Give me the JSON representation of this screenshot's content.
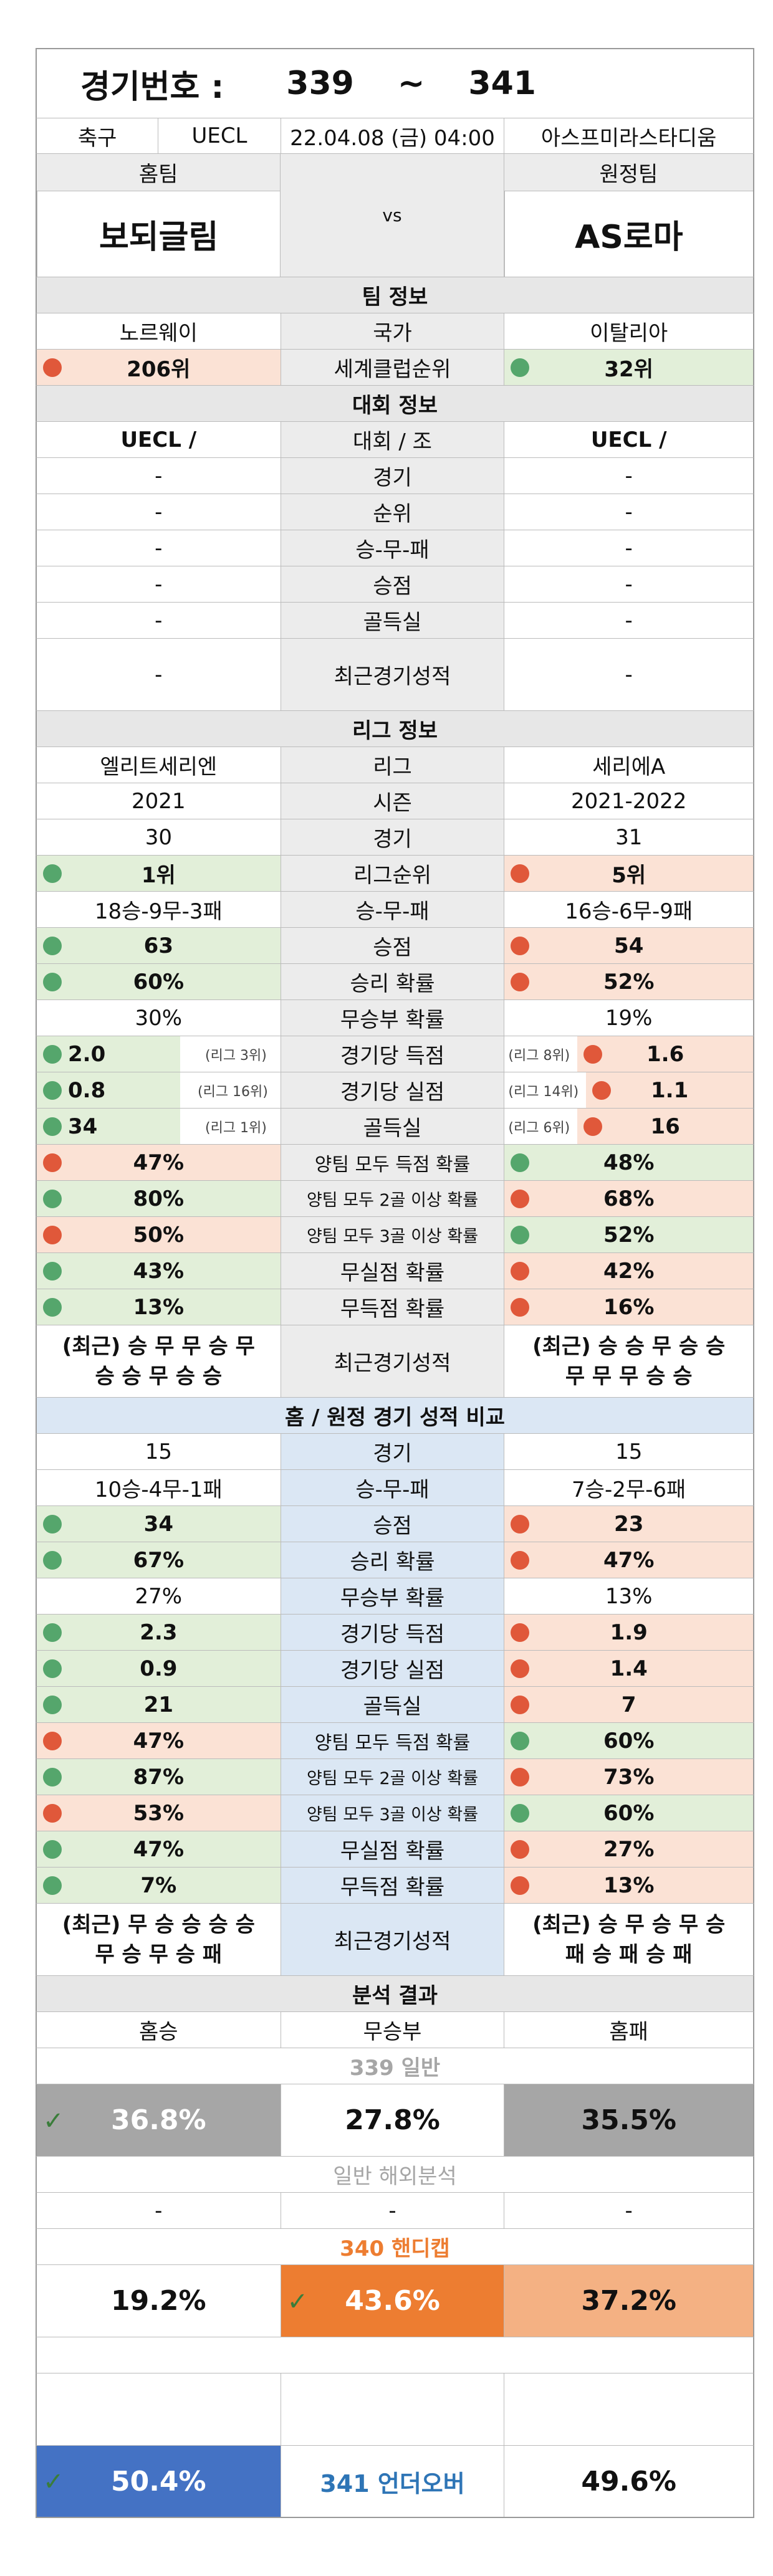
{
  "header": {
    "game_label": "경기번호 :",
    "game_from": "339",
    "tilde": "~",
    "game_to": "341"
  },
  "match": {
    "sport": "축구",
    "league": "UECL",
    "datetime": "22.04.08 (금) 04:00",
    "stadium": "아스프미라스타디움"
  },
  "teams": {
    "home_label": "홈팀",
    "away_label": "원정팀",
    "home": "보되글림",
    "vs": "vs",
    "away": "AS로마"
  },
  "team_info": {
    "title": "팀 정보",
    "country": {
      "home": "노르웨이",
      "label": "국가",
      "away": "이탈리아"
    },
    "club_rank": {
      "home": "206위",
      "label": "세계클럽순위",
      "away": "32위"
    }
  },
  "tournament": {
    "title": "대회 정보",
    "rows": [
      {
        "home": "UECL /",
        "label": "대회 / 조",
        "away": "UECL /"
      },
      {
        "home": "-",
        "label": "경기",
        "away": "-"
      },
      {
        "home": "-",
        "label": "순위",
        "away": "-"
      },
      {
        "home": "-",
        "label": "승-무-패",
        "away": "-"
      },
      {
        "home": "-",
        "label": "승점",
        "away": "-"
      },
      {
        "home": "-",
        "label": "골득실",
        "away": "-"
      },
      {
        "home": "-",
        "label": "최근경기성적",
        "away": "-"
      }
    ]
  },
  "league": {
    "title": "리그 정보",
    "name": {
      "home": "엘리트세리엔",
      "label": "리그",
      "away": "세리에A"
    },
    "season": {
      "home": "2021",
      "label": "시즌",
      "away": "2021-2022"
    },
    "games": {
      "home": "30",
      "label": "경기",
      "away": "31"
    },
    "rank": {
      "home": "1위",
      "label": "리그순위",
      "away": "5위"
    },
    "record": {
      "home": "18승-9무-3패",
      "label": "승-무-패",
      "away": "16승-6무-9패"
    },
    "points": {
      "home": "63",
      "label": "승점",
      "away": "54"
    },
    "win_rate": {
      "home": "60%",
      "label": "승리 확률",
      "away": "52%"
    },
    "draw_rate": {
      "home": "30%",
      "label": "무승부 확률",
      "away": "19%"
    },
    "goals_for": {
      "home": "2.0",
      "home_rank": "(리그 3위)",
      "label": "경기당 득점",
      "away_rank": "(리그 8위)",
      "away": "1.6"
    },
    "goals_against": {
      "home": "0.8",
      "home_rank": "(리그 16위)",
      "label": "경기당 실점",
      "away_rank": "(리그 14위)",
      "away": "1.1"
    },
    "goal_diff": {
      "home": "34",
      "home_rank": "(리그 1위)",
      "label": "골득실",
      "away_rank": "(리그 6위)",
      "away": "16"
    },
    "btts": {
      "home": "47%",
      "label": "양팀 모두 득점 확률",
      "away": "48%"
    },
    "o2": {
      "home": "80%",
      "label": "양팀 모두 2골 이상 확률",
      "away": "68%"
    },
    "o3": {
      "home": "50%",
      "label": "양팀 모두 3골 이상 확률",
      "away": "52%"
    },
    "clean": {
      "home": "43%",
      "label": "무실점 확률",
      "away": "42%"
    },
    "noscore": {
      "home": "13%",
      "label": "무득점 확률",
      "away": "16%"
    },
    "recent": {
      "home1": "(최근) 승 무 무 승 무",
      "home2": "승 승 무 승 승",
      "label": "최근경기성적",
      "away1": "(최근) 승 승 무 승 승",
      "away2": "무 무 무 승 승"
    }
  },
  "homeaway": {
    "title": "홈 / 원정 경기 성적 비교",
    "games": {
      "home": "15",
      "label": "경기",
      "away": "15"
    },
    "record": {
      "home": "10승-4무-1패",
      "label": "승-무-패",
      "away": "7승-2무-6패"
    },
    "points": {
      "home": "34",
      "label": "승점",
      "away": "23"
    },
    "win_rate": {
      "home": "67%",
      "label": "승리 확률",
      "away": "47%"
    },
    "draw_rate": {
      "home": "27%",
      "label": "무승부 확률",
      "away": "13%"
    },
    "goals_for": {
      "home": "2.3",
      "label": "경기당 득점",
      "away": "1.9"
    },
    "goals_against": {
      "home": "0.9",
      "label": "경기당 실점",
      "away": "1.4"
    },
    "goal_diff": {
      "home": "21",
      "label": "골득실",
      "away": "7"
    },
    "btts": {
      "home": "47%",
      "label": "양팀 모두 득점 확률",
      "away": "60%"
    },
    "o2": {
      "home": "87%",
      "label": "양팀 모두 2골 이상 확률",
      "away": "73%"
    },
    "o3": {
      "home": "53%",
      "label": "양팀 모두 3골 이상 확률",
      "away": "60%"
    },
    "clean": {
      "home": "47%",
      "label": "무실점 확률",
      "away": "27%"
    },
    "noscore": {
      "home": "7%",
      "label": "무득점 확률",
      "away": "13%"
    },
    "recent": {
      "home1": "(최근) 무 승 승 승 승",
      "home2": "무 승 무 승 패",
      "label": "최근경기성적",
      "away1": "(최근) 승 무 승 무 승",
      "away2": "패 승 패 승 패"
    }
  },
  "analysis": {
    "title": "분석 결과",
    "cols": {
      "home": "홈승",
      "draw": "무승부",
      "away": "홈패"
    },
    "general_title": "339 일반",
    "general": {
      "home": "36.8%",
      "draw": "27.8%",
      "away": "35.5%"
    },
    "overseas_title": "일반 해외분석",
    "overseas": {
      "home": "-",
      "draw": "-",
      "away": "-"
    },
    "handicap_title": "340 핸디캡",
    "handicap": {
      "home": "19.2%",
      "draw": "43.6%",
      "away": "37.2%"
    },
    "uo_label": "341 언더오버",
    "uo": {
      "under": "50.4%",
      "over": "49.6%"
    }
  },
  "colors": {
    "accent_orange": "#ed7d31",
    "light_orange": "#f4b183",
    "accent_blue": "#4472c4",
    "dark_gray": "#a6a6a6",
    "red_dot": "#e0583a",
    "green_dot": "#55a66c"
  }
}
